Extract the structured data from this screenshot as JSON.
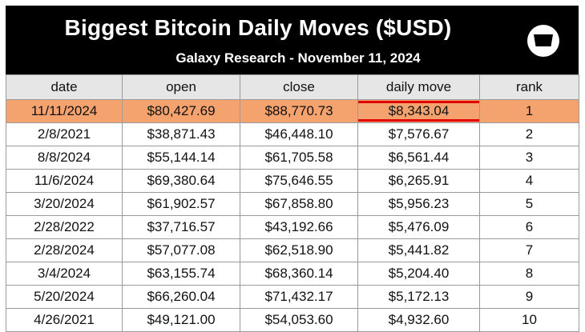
{
  "header": {
    "title": "Biggest Bitcoin Daily Moves ($USD)",
    "subtitle": "Galaxy Research - November 11, 2024",
    "logo_icon": "galaxy-logo-icon"
  },
  "table": {
    "columns": [
      "date",
      "open",
      "close",
      "daily move",
      "rank"
    ],
    "rows": [
      [
        "11/11/2024",
        "$80,427.69",
        "$88,770.73",
        "$8,343.04",
        "1"
      ],
      [
        "2/8/2021",
        "$38,871.43",
        "$46,448.10",
        "$7,576.67",
        "2"
      ],
      [
        "8/8/2024",
        "$55,144.14",
        "$61,705.58",
        "$6,561.44",
        "3"
      ],
      [
        "11/6/2024",
        "$69,380.64",
        "$75,646.55",
        "$6,265.91",
        "4"
      ],
      [
        "3/20/2024",
        "$61,902.57",
        "$67,858.80",
        "$5,956.23",
        "5"
      ],
      [
        "2/28/2022",
        "$37,716.57",
        "$43,192.66",
        "$5,476.09",
        "6"
      ],
      [
        "2/28/2024",
        "$57,077.08",
        "$62,518.90",
        "$5,441.82",
        "7"
      ],
      [
        "3/4/2024",
        "$63,155.74",
        "$68,360.14",
        "$5,204.40",
        "8"
      ],
      [
        "5/20/2024",
        "$66,260.04",
        "$71,432.17",
        "$5,172.13",
        "9"
      ],
      [
        "4/26/2021",
        "$49,121.00",
        "$54,053.60",
        "$4,932.60",
        "10"
      ]
    ]
  },
  "colors": {
    "header_bg": "#000000",
    "highlight_row": "#f4a26e",
    "highlight_box": "#e00000",
    "column_header_bg": "#e6e6e6"
  }
}
